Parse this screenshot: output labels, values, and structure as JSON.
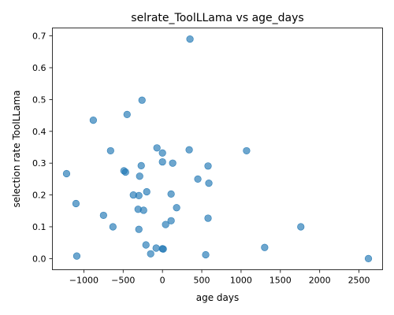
{
  "chart_data": {
    "type": "scatter",
    "title": "selrate_ToolLLama vs age_days",
    "xlabel": "age days",
    "ylabel": "selection rate ToolLLama",
    "xlim": [
      -1400,
      2800
    ],
    "ylim": [
      -0.035,
      0.725
    ],
    "x_ticks": [
      -1000,
      -500,
      0,
      500,
      1000,
      1500,
      2000,
      2500
    ],
    "x_tick_labels": [
      "−1000",
      "−500",
      "0",
      "500",
      "1000",
      "1500",
      "2000",
      "2500"
    ],
    "y_ticks": [
      0.0,
      0.1,
      0.2,
      0.3,
      0.4,
      0.5,
      0.6,
      0.7
    ],
    "y_tick_labels": [
      "0.0",
      "0.1",
      "0.2",
      "0.3",
      "0.4",
      "0.5",
      "0.6",
      "0.7"
    ],
    "grid": false,
    "legend": false,
    "marker_color": "#1f77b4",
    "marker_alpha": 0.65,
    "points": [
      {
        "x": 350,
        "y": 0.69
      },
      {
        "x": -260,
        "y": 0.498
      },
      {
        "x": -450,
        "y": 0.453
      },
      {
        "x": -880,
        "y": 0.435
      },
      {
        "x": -70,
        "y": 0.348
      },
      {
        "x": 340,
        "y": 0.342
      },
      {
        "x": -660,
        "y": 0.339
      },
      {
        "x": 1070,
        "y": 0.339
      },
      {
        "x": 0,
        "y": 0.332
      },
      {
        "x": 0,
        "y": 0.304
      },
      {
        "x": 130,
        "y": 0.3
      },
      {
        "x": -270,
        "y": 0.292
      },
      {
        "x": 580,
        "y": 0.291
      },
      {
        "x": -490,
        "y": 0.276
      },
      {
        "x": -470,
        "y": 0.272
      },
      {
        "x": -1220,
        "y": 0.267
      },
      {
        "x": -290,
        "y": 0.259
      },
      {
        "x": 450,
        "y": 0.25
      },
      {
        "x": 590,
        "y": 0.237
      },
      {
        "x": -200,
        "y": 0.21
      },
      {
        "x": 110,
        "y": 0.203
      },
      {
        "x": -370,
        "y": 0.2
      },
      {
        "x": -300,
        "y": 0.198
      },
      {
        "x": -1100,
        "y": 0.173
      },
      {
        "x": 180,
        "y": 0.16
      },
      {
        "x": -310,
        "y": 0.155
      },
      {
        "x": -240,
        "y": 0.152
      },
      {
        "x": -750,
        "y": 0.136
      },
      {
        "x": 580,
        "y": 0.127
      },
      {
        "x": 110,
        "y": 0.119
      },
      {
        "x": 40,
        "y": 0.107
      },
      {
        "x": -630,
        "y": 0.1
      },
      {
        "x": 1760,
        "y": 0.1
      },
      {
        "x": -300,
        "y": 0.092
      },
      {
        "x": -210,
        "y": 0.043
      },
      {
        "x": 1300,
        "y": 0.035
      },
      {
        "x": -80,
        "y": 0.033
      },
      {
        "x": 0,
        "y": 0.031
      },
      {
        "x": 10,
        "y": 0.03
      },
      {
        "x": -150,
        "y": 0.015
      },
      {
        "x": 550,
        "y": 0.012
      },
      {
        "x": -1090,
        "y": 0.008
      },
      {
        "x": 2620,
        "y": 0.0
      }
    ]
  }
}
